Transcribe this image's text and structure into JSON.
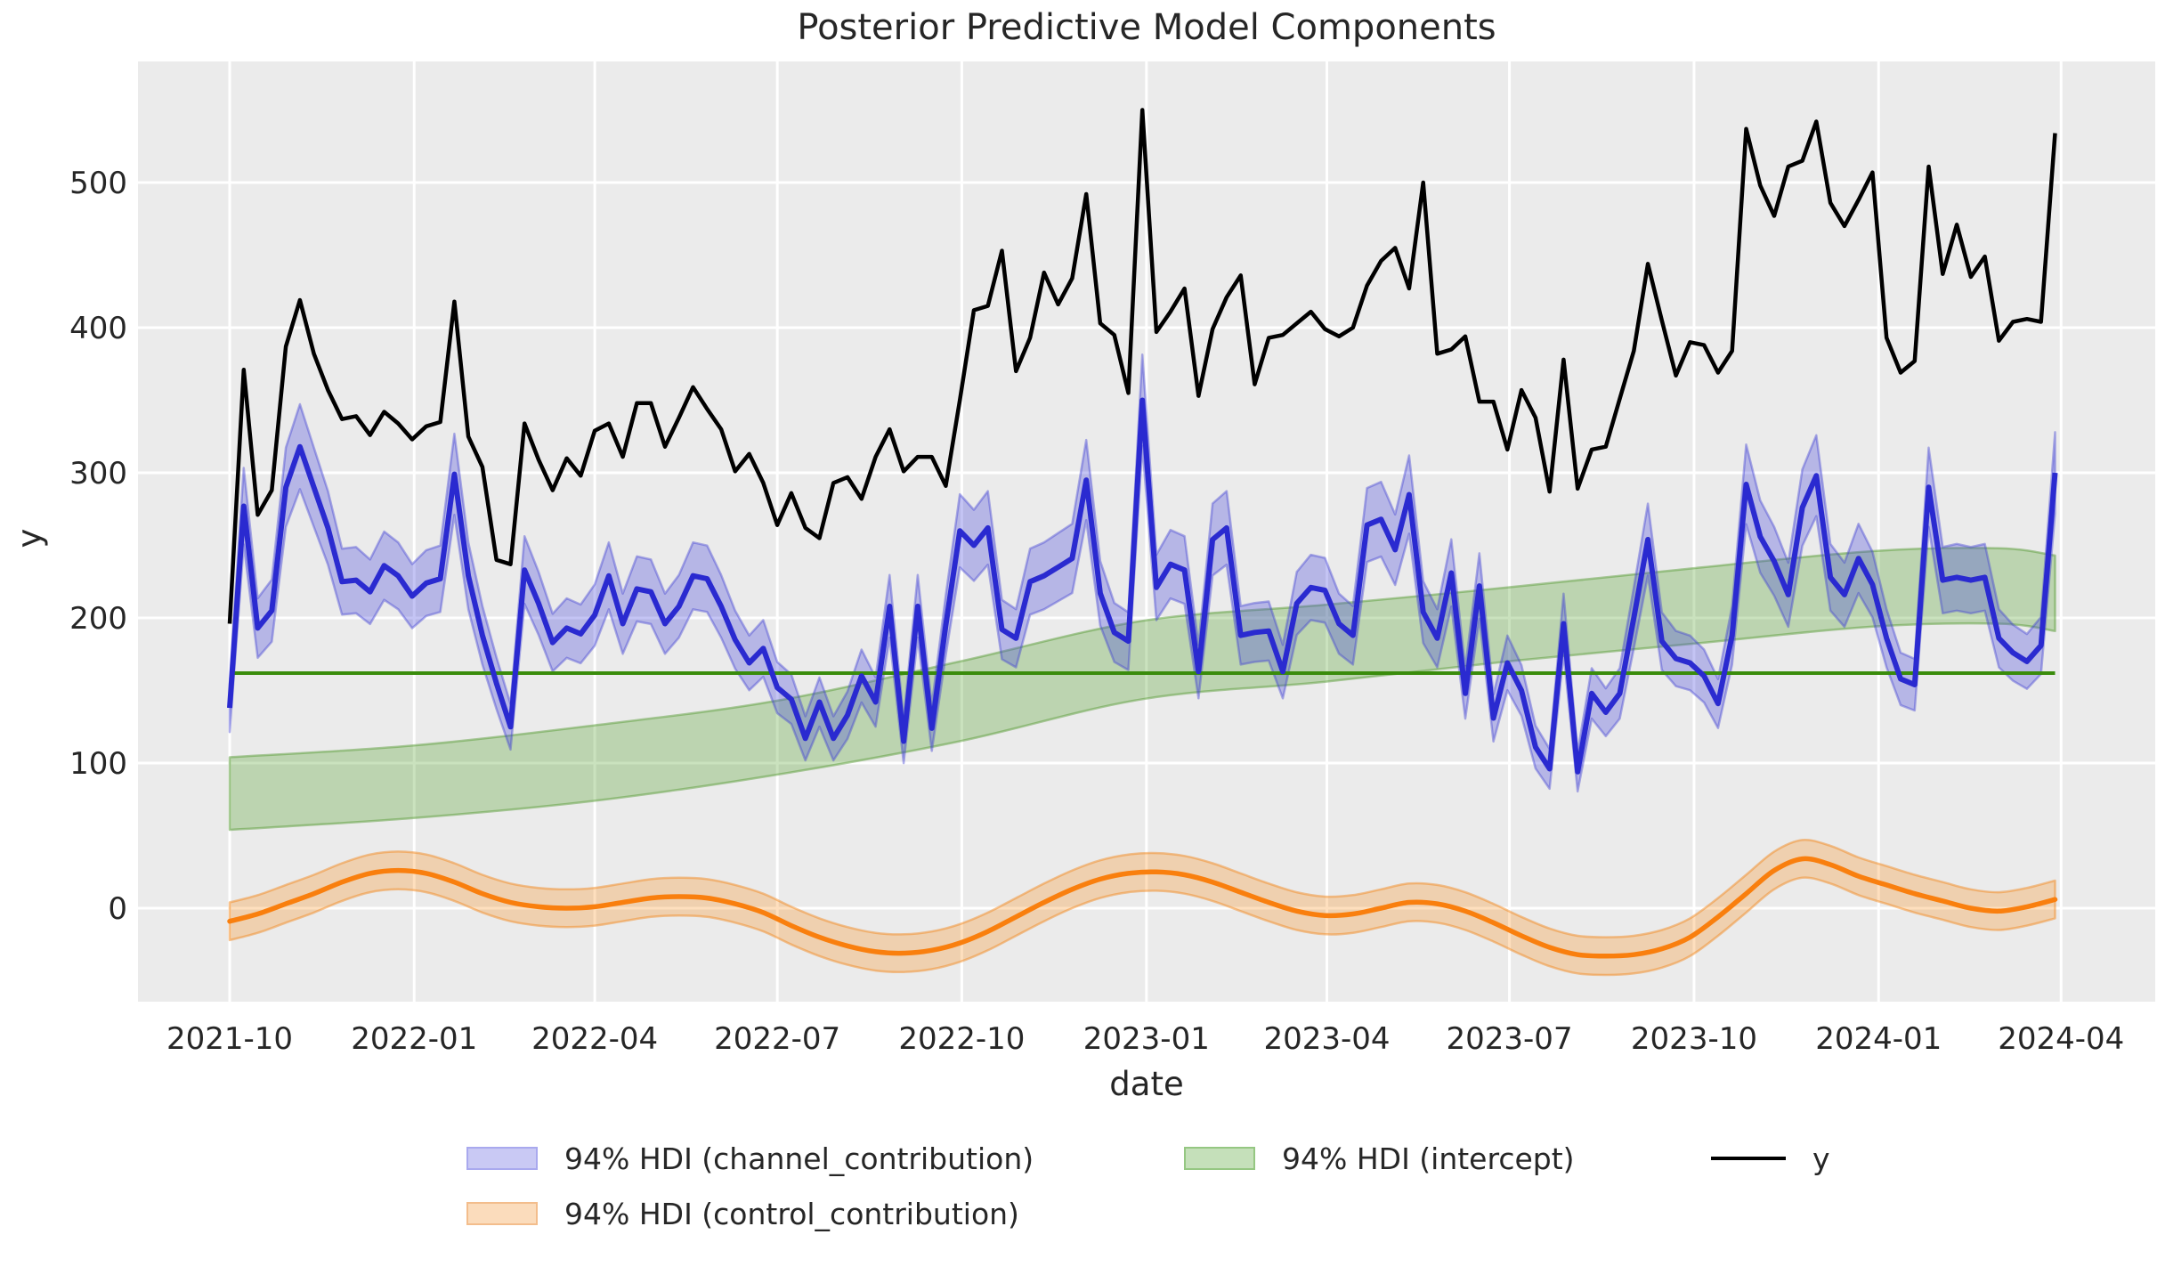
{
  "title": "Posterior Predictive Model Components",
  "axes": {
    "xlabel": "date",
    "ylabel": "y"
  },
  "legend": {
    "items": [
      {
        "label": "94% HDI (channel_contribution)",
        "swatch": "blue-band"
      },
      {
        "label": "94% HDI (intercept)",
        "swatch": "green-band"
      },
      {
        "label": "y",
        "swatch": "black-line"
      },
      {
        "label": "94% HDI (control_contribution)",
        "swatch": "orange-band"
      }
    ]
  },
  "colors": {
    "figure_bg": "#ffffff",
    "plot_bg": "#ebebeb",
    "grid": "#ffffff",
    "y_line": "#000000",
    "channel_line": "#2a2ad0",
    "channel_band_fill": "rgba(70,70,220,0.32)",
    "channel_band_edge": "rgba(60,60,210,0.40)",
    "intercept_line": "#3a8c0c",
    "intercept_band_fill": "rgba(80,160,40,0.30)",
    "intercept_band_edge": "rgba(80,150,45,0.45)",
    "control_line": "#f97f0e",
    "control_band_fill": "rgba(250,140,20,0.28)",
    "control_band_edge": "rgba(242,130,20,0.45)",
    "tick_text": "#262626",
    "legend_swatch_blue_fill": "#c9c9f4",
    "legend_swatch_blue_edge": "#a9a9ee",
    "legend_swatch_green_fill": "#c5e0ba",
    "legend_swatch_green_edge": "#95c782",
    "legend_swatch_orange_fill": "#fbdcbc",
    "legend_swatch_orange_edge": "#f3bd8c"
  },
  "chart_data": {
    "type": "line",
    "title": "Posterior Predictive Model Components",
    "xlabel": "date",
    "ylabel": "y",
    "grid": true,
    "legend_position": "bottom",
    "x_description": "weekly points, week index 0 = 2021-10-01, last index 130 = 2024-03-29",
    "x_tick_labels": [
      "2021-10",
      "2022-01",
      "2022-04",
      "2022-07",
      "2022-10",
      "2023-01",
      "2023-04",
      "2023-07",
      "2023-10",
      "2024-01",
      "2024-04"
    ],
    "x_tick_weeks": [
      0,
      13.14,
      26.0,
      39.0,
      52.14,
      65.29,
      78.14,
      91.14,
      104.29,
      117.43,
      130.43
    ],
    "yticks": [
      0,
      100,
      200,
      300,
      400,
      500
    ],
    "ylim": [
      -64,
      583
    ],
    "series": [
      {
        "name": "y",
        "legend": "y",
        "type": "line",
        "weekly_values": [
          196,
          371,
          271,
          288,
          387,
          419,
          382,
          357,
          337,
          339,
          326,
          342,
          334,
          323,
          332,
          335,
          418,
          325,
          304,
          240,
          237,
          334,
          309,
          288,
          310,
          298,
          329,
          334,
          311,
          348,
          348,
          318,
          338,
          359,
          344,
          330,
          301,
          313,
          293,
          264,
          286,
          262,
          255,
          293,
          297,
          282,
          311,
          330,
          301,
          311,
          311,
          291,
          350,
          412,
          415,
          453,
          370,
          393,
          438,
          416,
          434,
          492,
          403,
          395,
          355,
          550,
          397,
          411,
          427,
          353,
          399,
          421,
          436,
          361,
          393,
          395,
          403,
          411,
          399,
          394,
          400,
          429,
          446,
          455,
          427,
          500,
          382,
          385,
          394,
          349,
          349,
          316,
          357,
          338,
          287,
          378,
          289,
          316,
          318,
          351,
          384,
          444,
          405,
          367,
          390,
          388,
          369,
          384,
          537,
          498,
          477,
          511,
          515,
          542,
          486,
          470,
          488,
          507,
          393,
          369,
          377,
          511,
          437,
          471,
          435,
          449,
          391,
          404,
          406,
          404,
          534
        ]
      },
      {
        "name": "channel_contribution",
        "legend": "94% HDI (channel_contribution)",
        "type": "line_with_hdi",
        "hdi": "94%",
        "hdi_halfwidth_rule": {
          "base": 7,
          "frac_of_mean": 0.07
        },
        "weekly_values": [
          138,
          277,
          193,
          205,
          290,
          318,
          290,
          262,
          225,
          226,
          218,
          236,
          229,
          215,
          224,
          227,
          299,
          229,
          188,
          155,
          125,
          233,
          210,
          183,
          193,
          189,
          202,
          229,
          196,
          220,
          218,
          196,
          208,
          229,
          227,
          208,
          185,
          169,
          179,
          152,
          144,
          117,
          142,
          117,
          133,
          160,
          142,
          208,
          115,
          208,
          124,
          195,
          260,
          250,
          262,
          192,
          186,
          225,
          229,
          235,
          241,
          295,
          217,
          190,
          184,
          350,
          221,
          237,
          233,
          163,
          254,
          262,
          188,
          190,
          191,
          163,
          210,
          221,
          219,
          196,
          188,
          264,
          268,
          247,
          285,
          204,
          186,
          231,
          148,
          222,
          131,
          169,
          150,
          111,
          96,
          196,
          94,
          148,
          135,
          148,
          200,
          254,
          184,
          172,
          169,
          160,
          141,
          188,
          292,
          256,
          239,
          216,
          276,
          298,
          228,
          216,
          241,
          223,
          186,
          158,
          154,
          290,
          226,
          228,
          226,
          228,
          186,
          176,
          170,
          181,
          300
        ]
      },
      {
        "name": "intercept",
        "legend": "94% HDI (intercept)",
        "type": "hdi_band_with_line",
        "hdi": "94%",
        "line_value": 162,
        "knot_weeks": [
          0,
          13,
          26,
          39,
          52,
          65,
          78,
          91,
          104,
          117,
          126,
          130
        ],
        "hdi_lower": [
          54,
          62,
          74,
          92,
          115,
          144,
          156,
          170,
          182,
          194,
          196,
          191
        ],
        "hdi_upper": [
          104,
          112,
          126,
          143,
          170,
          198,
          209,
          221,
          234,
          246,
          248,
          243
        ]
      },
      {
        "name": "control_contribution",
        "legend": "94% HDI (control_contribution)",
        "type": "line_with_hdi",
        "hdi": "94%",
        "hdi_halfwidth": 13,
        "knot_weeks": [
          0,
          2,
          4,
          6,
          8,
          10,
          12,
          14,
          16,
          18,
          20,
          22,
          24,
          26,
          28,
          30,
          32,
          34,
          36,
          38,
          40,
          42,
          44,
          46,
          48,
          50,
          52,
          54,
          56,
          58,
          60,
          62,
          64,
          66,
          68,
          70,
          72,
          74,
          76,
          78,
          80,
          82,
          84,
          86,
          88,
          90,
          92,
          94,
          96,
          98,
          100,
          102,
          104,
          106,
          108,
          110,
          112,
          114,
          116,
          118,
          120,
          122,
          124,
          126,
          128,
          130
        ],
        "knot_values": [
          -9,
          -4,
          3,
          10,
          18,
          24,
          26,
          24,
          18,
          10,
          4,
          1,
          0,
          1,
          4,
          7,
          8,
          7,
          3,
          -3,
          -12,
          -20,
          -26,
          -30,
          -31,
          -29,
          -24,
          -16,
          -6,
          4,
          13,
          20,
          24,
          25,
          23,
          18,
          11,
          4,
          -2,
          -5,
          -4,
          0,
          4,
          3,
          -2,
          -10,
          -19,
          -27,
          -32,
          -33,
          -32,
          -28,
          -20,
          -6,
          10,
          26,
          34,
          30,
          22,
          16,
          10,
          5,
          0,
          -2,
          1,
          6
        ]
      }
    ]
  }
}
